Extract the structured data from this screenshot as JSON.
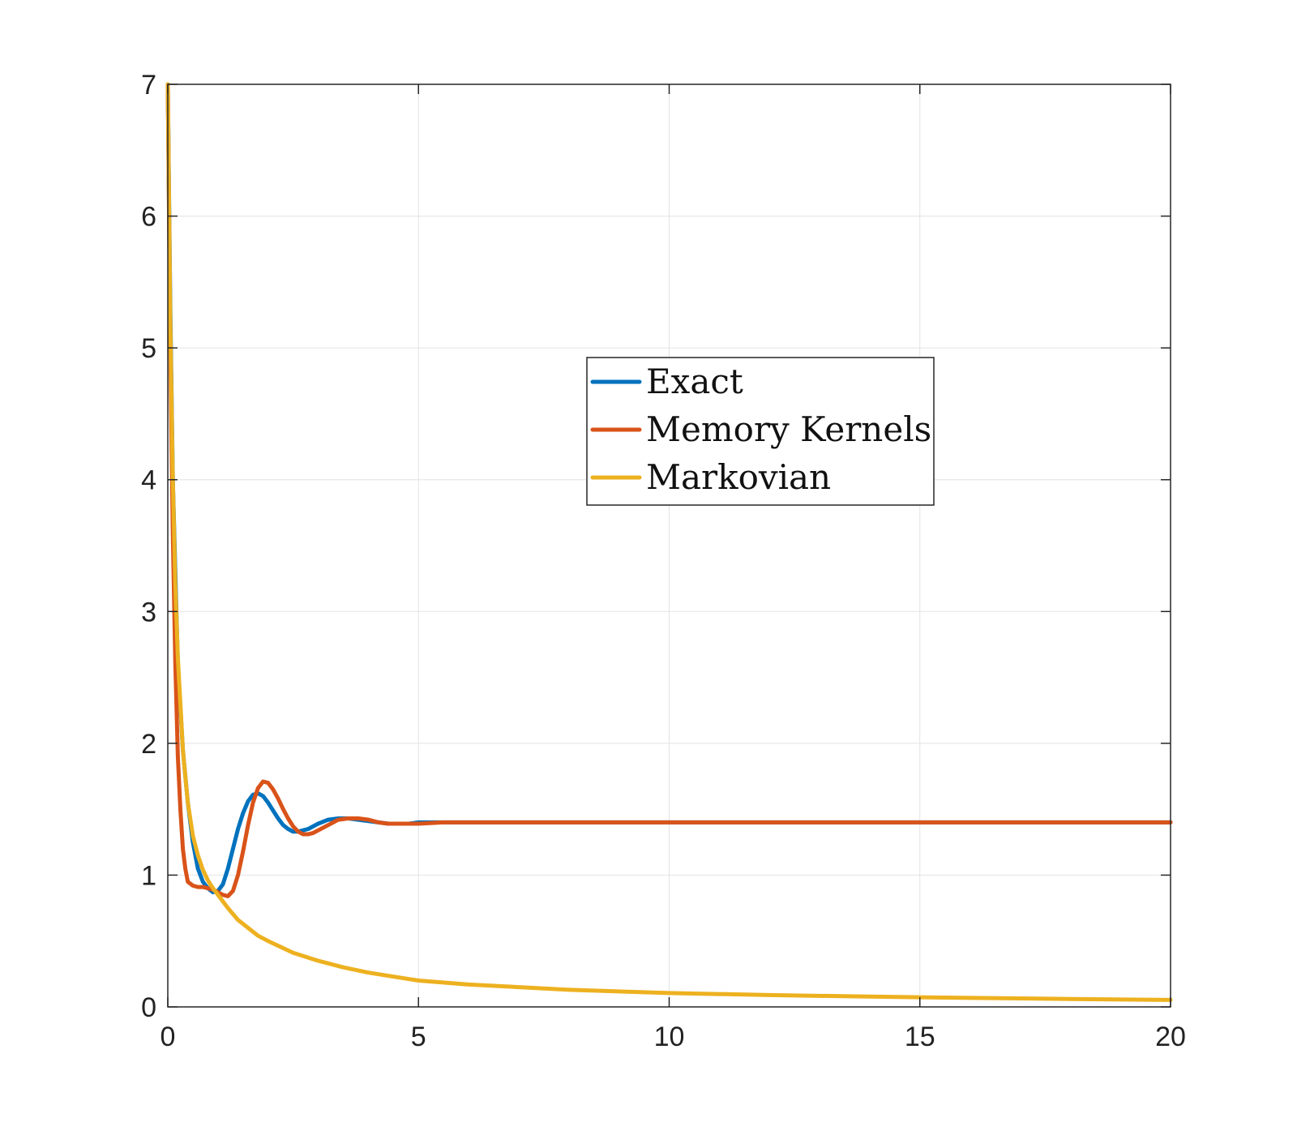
{
  "chart_data": {
    "type": "line",
    "title": "",
    "xlabel": "",
    "ylabel": "",
    "xlim": [
      0,
      20
    ],
    "ylim": [
      0,
      7
    ],
    "x_ticks": [
      "0",
      "5",
      "10",
      "15",
      "20"
    ],
    "y_ticks": [
      "0",
      "1",
      "2",
      "3",
      "4",
      "5",
      "6",
      "7"
    ],
    "grid": true,
    "legend_position": "center",
    "series": [
      {
        "name": "Exact",
        "color": "#0072BD",
        "x": [
          0,
          0.05,
          0.1,
          0.2,
          0.3,
          0.4,
          0.5,
          0.6,
          0.7,
          0.8,
          0.9,
          1.0,
          1.1,
          1.2,
          1.3,
          1.4,
          1.5,
          1.6,
          1.7,
          1.8,
          1.9,
          2.0,
          2.1,
          2.2,
          2.3,
          2.4,
          2.5,
          2.6,
          2.8,
          3.0,
          3.2,
          3.4,
          3.6,
          3.8,
          4.0,
          4.2,
          4.4,
          4.6,
          4.8,
          5.0,
          5.5,
          6.0,
          7.0,
          10,
          15,
          20
        ],
        "y": [
          7.0,
          5.3,
          4.0,
          2.6,
          1.95,
          1.55,
          1.25,
          1.05,
          0.95,
          0.9,
          0.87,
          0.88,
          0.93,
          1.05,
          1.2,
          1.35,
          1.47,
          1.56,
          1.61,
          1.62,
          1.6,
          1.55,
          1.49,
          1.43,
          1.38,
          1.35,
          1.33,
          1.33,
          1.35,
          1.39,
          1.42,
          1.43,
          1.43,
          1.42,
          1.41,
          1.4,
          1.39,
          1.39,
          1.39,
          1.4,
          1.4,
          1.4,
          1.4,
          1.4,
          1.4,
          1.4
        ]
      },
      {
        "name": "Memory Kernels",
        "color": "#D95319",
        "x": [
          0,
          0.05,
          0.1,
          0.15,
          0.2,
          0.25,
          0.3,
          0.35,
          0.4,
          0.5,
          0.6,
          0.7,
          0.8,
          0.9,
          1.0,
          1.1,
          1.2,
          1.3,
          1.4,
          1.5,
          1.6,
          1.7,
          1.8,
          1.9,
          2.0,
          2.1,
          2.2,
          2.3,
          2.4,
          2.5,
          2.6,
          2.7,
          2.8,
          2.9,
          3.0,
          3.2,
          3.4,
          3.6,
          3.8,
          4.0,
          4.2,
          4.4,
          4.6,
          4.8,
          5.0,
          5.5,
          6.0,
          7.0,
          10,
          15,
          20
        ],
        "y": [
          7.0,
          5.0,
          3.6,
          2.6,
          1.9,
          1.5,
          1.2,
          1.05,
          0.95,
          0.92,
          0.91,
          0.91,
          0.9,
          0.89,
          0.87,
          0.85,
          0.84,
          0.88,
          1.0,
          1.18,
          1.38,
          1.55,
          1.66,
          1.71,
          1.7,
          1.65,
          1.58,
          1.5,
          1.43,
          1.37,
          1.33,
          1.31,
          1.31,
          1.32,
          1.34,
          1.38,
          1.42,
          1.43,
          1.43,
          1.42,
          1.4,
          1.39,
          1.39,
          1.39,
          1.39,
          1.4,
          1.4,
          1.4,
          1.4,
          1.4,
          1.4
        ]
      },
      {
        "name": "Markovian",
        "color": "#EDB120",
        "x": [
          0,
          0.05,
          0.1,
          0.15,
          0.2,
          0.3,
          0.4,
          0.5,
          0.6,
          0.7,
          0.8,
          0.9,
          1.0,
          1.2,
          1.4,
          1.6,
          1.8,
          2.0,
          2.5,
          3.0,
          3.5,
          4.0,
          5.0,
          6.0,
          7.0,
          8.0,
          10,
          12,
          14,
          16,
          18,
          20
        ],
        "y": [
          7.0,
          5.2,
          4.0,
          3.2,
          2.65,
          1.95,
          1.55,
          1.3,
          1.15,
          1.04,
          0.96,
          0.9,
          0.85,
          0.75,
          0.66,
          0.6,
          0.54,
          0.5,
          0.41,
          0.35,
          0.3,
          0.26,
          0.2,
          0.17,
          0.15,
          0.13,
          0.105,
          0.09,
          0.078,
          0.068,
          0.06,
          0.053
        ]
      }
    ]
  }
}
